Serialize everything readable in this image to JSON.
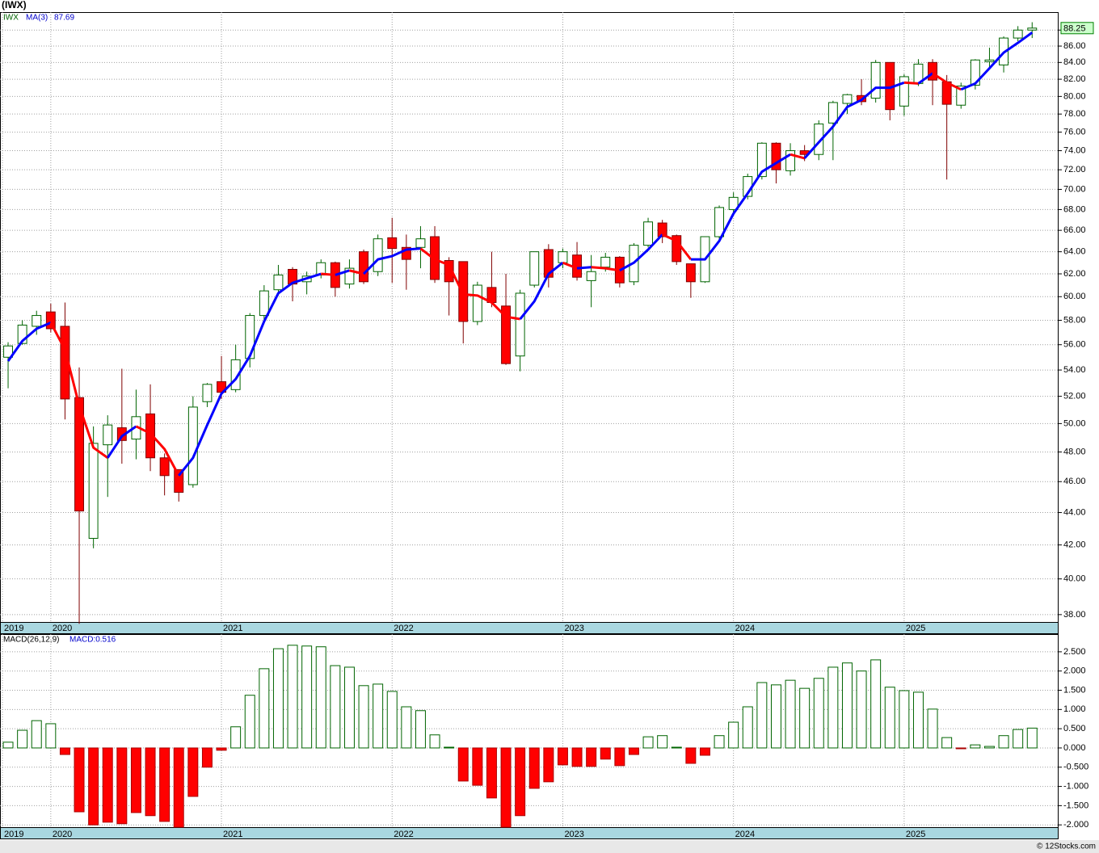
{
  "chart_data": [
    {
      "type": "candlestick",
      "title": "(IWX)",
      "name": "IWX",
      "log_scale": true,
      "grid": true,
      "up_color": "#006400",
      "down_color": "#ff0000",
      "xlim": [
        -0.57,
        73.86
      ],
      "xticks": [
        {
          "value": -0.4,
          "label": "2019"
        },
        {
          "value": 3,
          "label": "2020"
        },
        {
          "value": 15,
          "label": "2021"
        },
        {
          "value": 27,
          "label": "2022"
        },
        {
          "value": 39,
          "label": "2023"
        },
        {
          "value": 51,
          "label": "2024"
        },
        {
          "value": 63,
          "label": "2025"
        }
      ],
      "ylim": [
        37.6,
        90.3
      ],
      "yticks": [
        {
          "value": 38,
          "label": "38.00"
        },
        {
          "value": 40,
          "label": "40.00"
        },
        {
          "value": 42,
          "label": "42.00"
        },
        {
          "value": 44,
          "label": "44.00"
        },
        {
          "value": 46,
          "label": "46.00"
        },
        {
          "value": 48,
          "label": "48.00"
        },
        {
          "value": 50,
          "label": "50.00"
        },
        {
          "value": 52,
          "label": "52.00"
        },
        {
          "value": 54,
          "label": "54.00"
        },
        {
          "value": 56,
          "label": "56.00"
        },
        {
          "value": 58,
          "label": "58.00"
        },
        {
          "value": 60,
          "label": "60.00"
        },
        {
          "value": 62,
          "label": "62.00"
        },
        {
          "value": 64,
          "label": "64.00"
        },
        {
          "value": 66,
          "label": "66.00"
        },
        {
          "value": 68,
          "label": "68.00"
        },
        {
          "value": 70,
          "label": "70.00"
        },
        {
          "value": 72,
          "label": "72.00"
        },
        {
          "value": 74,
          "label": "74.00"
        },
        {
          "value": 76,
          "label": "76.00"
        },
        {
          "value": 78,
          "label": "78.00"
        },
        {
          "value": 80,
          "label": "80.00"
        },
        {
          "value": 82,
          "label": "82.00"
        },
        {
          "value": 84,
          "label": "84.00"
        },
        {
          "value": 86,
          "label": "86.00"
        },
        {
          "value": 88,
          "label": "88.00"
        }
      ],
      "open": [
        55.0,
        56.1,
        57.5,
        58.7,
        57.5,
        51.9,
        42.4,
        48.5,
        49.7,
        48.9,
        50.7,
        47.6,
        46.8,
        45.8,
        51.6,
        53.1,
        52.5,
        54.9,
        58.4,
        60.6,
        62.4,
        61.3,
        61.9,
        63.0,
        61.1,
        64.0,
        62.2,
        65.3,
        64.4,
        64.4,
        65.4,
        63.2,
        63.1,
        57.9,
        60.8,
        59.2,
        55.1,
        61.0,
        64.2,
        63.0,
        63.7,
        61.4,
        62.6,
        63.5,
        61.3,
        64.6,
        66.7,
        65.5,
        62.9,
        61.3,
        65.4,
        68.0,
        69.3,
        71.3,
        74.8,
        71.9,
        74.0,
        73.6,
        77.0,
        79.2,
        80.1,
        79.8,
        84.0,
        78.9,
        81.5,
        84.0,
        81.7,
        79.0,
        81.3,
        84.1,
        83.7,
        87.0,
        88.0
      ],
      "high": [
        56.2,
        58.0,
        58.8,
        59.4,
        59.5,
        54.2,
        49.8,
        50.6,
        54.1,
        52.5,
        52.9,
        47.9,
        46.8,
        52.0,
        53.0,
        55.1,
        56.0,
        58.6,
        61.0,
        62.8,
        62.6,
        62.2,
        63.3,
        63.1,
        63.3,
        64.2,
        65.6,
        67.2,
        65.6,
        66.4,
        66.4,
        63.5,
        63.1,
        61.3,
        64.0,
        62.0,
        60.6,
        64.0,
        64.7,
        64.3,
        64.9,
        63.7,
        63.9,
        63.6,
        64.8,
        67.2,
        67.0,
        65.6,
        62.9,
        65.4,
        68.4,
        69.7,
        71.6,
        74.9,
        74.9,
        74.8,
        74.6,
        77.3,
        79.5,
        80.3,
        82.0,
        84.3,
        84.0,
        82.6,
        84.4,
        84.4,
        82.5,
        81.6,
        84.4,
        85.8,
        87.2,
        88.5,
        89.0
      ],
      "low": [
        52.6,
        56.0,
        56.8,
        57.0,
        50.3,
        37.5,
        41.8,
        45.0,
        47.2,
        47.5,
        46.7,
        45.1,
        44.7,
        45.6,
        51.2,
        51.8,
        52.3,
        54.2,
        58.0,
        60.1,
        59.6,
        60.2,
        61.6,
        60.0,
        60.7,
        61.1,
        61.8,
        61.2,
        60.6,
        62.5,
        61.2,
        58.4,
        56.1,
        57.6,
        59.1,
        54.4,
        53.9,
        60.8,
        60.8,
        62.5,
        61.4,
        59.1,
        62.2,
        60.8,
        61.0,
        64.4,
        64.8,
        62.8,
        59.9,
        61.2,
        65.2,
        67.4,
        69.0,
        71.0,
        70.6,
        71.4,
        72.9,
        73.0,
        73.0,
        78.0,
        79.0,
        79.3,
        77.3,
        77.8,
        81.2,
        79.0,
        71.0,
        78.6,
        80.8,
        83.4,
        82.8,
        86.6,
        87.0
      ],
      "close": [
        55.9,
        57.6,
        58.4,
        57.3,
        51.8,
        44.1,
        48.6,
        49.9,
        48.8,
        50.5,
        47.6,
        46.4,
        45.3,
        51.2,
        52.9,
        52.3,
        54.8,
        58.4,
        60.5,
        61.9,
        61.1,
        61.8,
        63.0,
        60.8,
        62.5,
        61.3,
        65.2,
        64.3,
        63.3,
        65.2,
        61.5,
        61.3,
        57.9,
        61.0,
        59.5,
        54.5,
        60.3,
        64.0,
        61.7,
        64.0,
        61.7,
        62.2,
        63.5,
        61.2,
        64.6,
        66.8,
        65.4,
        63.1,
        61.3,
        65.4,
        68.2,
        69.2,
        71.3,
        74.8,
        72.0,
        74.0,
        73.6,
        76.9,
        79.3,
        80.2,
        79.4,
        84.0,
        78.5,
        82.3,
        83.8,
        81.9,
        79.1,
        81.2,
        84.3,
        84.3,
        87.0,
        88.0,
        88.25
      ],
      "ma": {
        "name": "MA(3)",
        "up_color": "#0000ff",
        "down_color": "#ff0000",
        "values": [
          54.7,
          56.3,
          57.3,
          57.8,
          55.6,
          51.3,
          48.3,
          47.6,
          49.1,
          49.8,
          49.3,
          48.2,
          46.4,
          47.6,
          49.9,
          52.2,
          53.3,
          55.1,
          57.9,
          60.3,
          61.2,
          61.6,
          62.0,
          61.9,
          62.3,
          62.0,
          63.3,
          63.6,
          64.2,
          64.3,
          63.3,
          62.8,
          60.2,
          60.1,
          59.5,
          58.3,
          58.1,
          59.6,
          62.0,
          63.0,
          62.5,
          62.6,
          62.5,
          62.3,
          63.0,
          64.2,
          65.6,
          65.0,
          63.3,
          63.3,
          65.0,
          67.6,
          69.6,
          71.8,
          72.7,
          73.6,
          73.2,
          74.9,
          76.6,
          78.8,
          79.6,
          81.0,
          81.0,
          81.6,
          81.5,
          82.7,
          81.6,
          80.8,
          81.5,
          83.3,
          85.2,
          86.4,
          87.69
        ]
      }
    },
    {
      "type": "bar",
      "title": "MACD(26,12,9)",
      "legend": "MACD:0.516",
      "credit": "© 12Stocks.com",
      "grid": true,
      "up_color": "#006400",
      "down_color": "#ff0000",
      "xlim": [
        -0.57,
        73.86
      ],
      "xticks": [
        {
          "value": -0.4,
          "label": "2019"
        },
        {
          "value": 3,
          "label": "2020"
        },
        {
          "value": 15,
          "label": "2021"
        },
        {
          "value": 27,
          "label": "2022"
        },
        {
          "value": 39,
          "label": "2023"
        },
        {
          "value": 51,
          "label": "2024"
        },
        {
          "value": 63,
          "label": "2025"
        }
      ],
      "ylim": [
        -2.08,
        2.96
      ],
      "yticks": [
        {
          "value": -2,
          "label": "-2.000"
        },
        {
          "value": -1.5,
          "label": "-1.500"
        },
        {
          "value": -1,
          "label": "-1.000"
        },
        {
          "value": -0.5,
          "label": "-0.500"
        },
        {
          "value": 0,
          "label": "0.000"
        },
        {
          "value": 0.5,
          "label": "0.500"
        },
        {
          "value": 1,
          "label": "1.000"
        },
        {
          "value": 1.5,
          "label": "1.500"
        },
        {
          "value": 2,
          "label": "2.000"
        },
        {
          "value": 2.5,
          "label": "2.500"
        }
      ],
      "values": [
        0.15,
        0.46,
        0.71,
        0.63,
        -0.17,
        -1.66,
        -2.0,
        -1.93,
        -1.97,
        -1.68,
        -1.76,
        -1.91,
        -2.06,
        -1.26,
        -0.5,
        -0.06,
        0.55,
        1.37,
        2.06,
        2.58,
        2.67,
        2.65,
        2.63,
        2.14,
        2.1,
        1.62,
        1.66,
        1.47,
        1.07,
        0.97,
        0.34,
        0.02,
        -0.86,
        -0.97,
        -1.3,
        -2.06,
        -1.76,
        -1.05,
        -0.88,
        -0.44,
        -0.48,
        -0.48,
        -0.29,
        -0.46,
        -0.17,
        0.29,
        0.32,
        0.02,
        -0.4,
        -0.19,
        0.32,
        0.67,
        1.07,
        1.7,
        1.64,
        1.76,
        1.55,
        1.81,
        2.1,
        2.21,
        2.0,
        2.29,
        1.58,
        1.49,
        1.45,
        1.01,
        0.27,
        -0.01,
        0.08,
        0.04,
        0.32,
        0.48,
        0.516
      ]
    }
  ]
}
